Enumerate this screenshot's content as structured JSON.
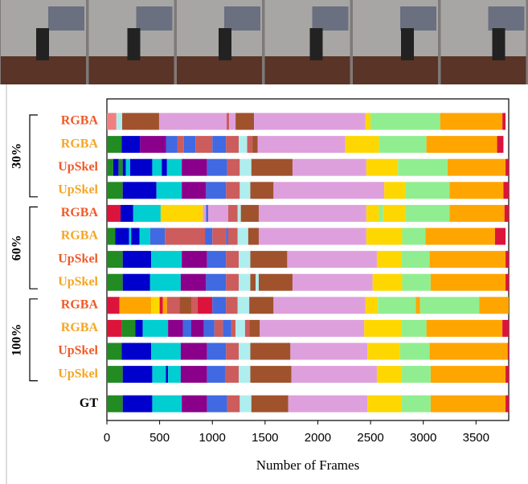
{
  "chart_data": {
    "type": "segments",
    "xlabel": "Number of Frames",
    "xlim": [
      0,
      3810
    ],
    "xticks": [
      0,
      500,
      1000,
      1500,
      2000,
      2500,
      3000,
      3500
    ],
    "groups": [
      {
        "label": "30%",
        "rows": [
          {
            "label": "RGBA",
            "label_color": "#f05a28",
            "colors": [
              "lightcoral",
              "paleturquoise",
              "sienna",
              "plum",
              "indianred",
              "plum",
              "sienna",
              "plum",
              "gold",
              "lightgreen",
              "orange",
              "crimson"
            ],
            "values": [
              90,
              55,
              350,
              640,
              25,
              60,
              175,
              1055,
              50,
              660,
              590,
              30
            ]
          },
          {
            "label": "RGBA",
            "label_color": "#f5a623",
            "colors": [
              "forestgreen",
              "mediumblue",
              "darkmagenta",
              "royalblue",
              "indianred",
              "royalblue",
              "indianred",
              "royalblue",
              "indianred",
              "paleturquoise",
              "indianred",
              "sienna",
              "plum",
              "gold",
              "lightgreen",
              "orange",
              "crimson"
            ],
            "values": [
              140,
              175,
              245,
              110,
              60,
              110,
              160,
              130,
              120,
              80,
              50,
              50,
              830,
              320,
              450,
              670,
              60
            ]
          },
          {
            "label": "UpSkel",
            "label_color": "#f05a28",
            "colors": [
              "forestgreen",
              "mediumblue",
              "forestgreen",
              "mediumblue",
              "darkturquoise",
              "mediumblue",
              "darkturquoise",
              "mediumblue",
              "darkturquoise",
              "darkmagenta",
              "royalblue",
              "indianred",
              "paleturquoise",
              "sienna",
              "plum",
              "gold",
              "lightgreen",
              "orange",
              "crimson"
            ],
            "values": [
              60,
              50,
              40,
              30,
              40,
              210,
              90,
              50,
              140,
              240,
              190,
              120,
              110,
              390,
              700,
              300,
              470,
              550,
              30
            ]
          },
          {
            "label": "UpSkel",
            "label_color": "#f5a623",
            "colors": [
              "forestgreen",
              "mediumblue",
              "darkturquoise",
              "darkmagenta",
              "royalblue",
              "indianred",
              "paleturquoise",
              "sienna",
              "plum",
              "gold",
              "lightgreen",
              "orange",
              "crimson"
            ],
            "values": [
              150,
              320,
              240,
              230,
              190,
              130,
              100,
              220,
              1050,
              200,
              420,
              510,
              50
            ]
          }
        ]
      },
      {
        "label": "60%",
        "rows": [
          {
            "label": "RGBA",
            "label_color": "#f05a28",
            "colors": [
              "crimson",
              "mediumblue",
              "darkturquoise",
              "gold",
              "plum",
              "royalblue",
              "plum",
              "indianred",
              "paleturquoise",
              "sienna",
              "plum",
              "gold",
              "lightgreen",
              "gold",
              "lightgreen",
              "orange",
              "crimson"
            ],
            "values": [
              130,
              120,
              260,
              400,
              30,
              20,
              190,
              90,
              30,
              170,
              1020,
              120,
              40,
              210,
              420,
              520,
              40
            ]
          },
          {
            "label": "RGBA",
            "label_color": "#f5a623",
            "colors": [
              "forestgreen",
              "mediumblue",
              "darkturquoise",
              "mediumblue",
              "darkturquoise",
              "royalblue",
              "indianred",
              "royalblue",
              "indianred",
              "royalblue",
              "indianred",
              "paleturquoise",
              "sienna",
              "plum",
              "gold",
              "lightgreen",
              "orange",
              "crimson"
            ],
            "values": [
              80,
              130,
              20,
              80,
              100,
              140,
              380,
              70,
              130,
              20,
              90,
              100,
              100,
              1020,
              340,
              220,
              660,
              100
            ]
          },
          {
            "label": "UpSkel",
            "label_color": "#f05a28",
            "colors": [
              "forestgreen",
              "mediumblue",
              "darkturquoise",
              "darkmagenta",
              "royalblue",
              "indianred",
              "paleturquoise",
              "sienna",
              "plum",
              "gold",
              "lightgreen",
              "orange",
              "crimson"
            ],
            "values": [
              150,
              270,
              290,
              240,
              180,
              120,
              110,
              350,
              850,
              230,
              270,
              720,
              30
            ]
          },
          {
            "label": "UpSkel",
            "label_color": "#f5a623",
            "colors": [
              "forestgreen",
              "mediumblue",
              "darkturquoise",
              "darkmagenta",
              "royalblue",
              "indianred",
              "paleturquoise",
              "sienna",
              "paleturquoise",
              "sienna",
              "plum",
              "gold",
              "lightgreen",
              "orange",
              "crimson"
            ],
            "values": [
              150,
              260,
              290,
              240,
              190,
              120,
              110,
              50,
              30,
              320,
              760,
              280,
              270,
              710,
              30
            ]
          }
        ]
      },
      {
        "label": "100%",
        "rows": [
          {
            "label": "RGBA",
            "label_color": "#f05a28",
            "colors": [
              "crimson",
              "orange",
              "gold",
              "crimson",
              "orange",
              "indianred",
              "sienna",
              "indianred",
              "crimson",
              "royalblue",
              "indianred",
              "paleturquoise",
              "sienna",
              "plum",
              "gold",
              "lightgreen",
              "orange",
              "lightgreen",
              "orange"
            ],
            "values": [
              120,
              300,
              80,
              30,
              40,
              120,
              110,
              60,
              140,
              130,
              110,
              110,
              230,
              870,
              120,
              360,
              40,
              560,
              280
            ]
          },
          {
            "label": "RGBA",
            "label_color": "#f5a623",
            "colors": [
              "crimson",
              "forestgreen",
              "mediumblue",
              "darkturquoise",
              "darkmagenta",
              "royalblue",
              "darkmagenta",
              "royalblue",
              "indianred",
              "royalblue",
              "indianred",
              "paleturquoise",
              "indianred",
              "sienna",
              "plum",
              "gold",
              "lightgreen",
              "orange",
              "crimson"
            ],
            "values": [
              140,
              130,
              70,
              240,
              140,
              80,
              120,
              100,
              80,
              80,
              40,
              90,
              40,
              100,
              990,
              350,
              240,
              720,
              60
            ]
          },
          {
            "label": "UpSkel",
            "label_color": "#f05a28",
            "colors": [
              "forestgreen",
              "mediumblue",
              "darkturquoise",
              "darkmagenta",
              "royalblue",
              "indianred",
              "paleturquoise",
              "sienna",
              "plum",
              "gold",
              "lightgreen",
              "orange",
              "crimson"
            ],
            "values": [
              140,
              280,
              280,
              250,
              180,
              120,
              110,
              380,
              730,
              310,
              280,
              740,
              10
            ]
          },
          {
            "label": "UpSkel",
            "label_color": "#f5a623",
            "colors": [
              "forestgreen",
              "mediumblue",
              "darkturquoise",
              "mediumblue",
              "darkturquoise",
              "darkmagenta",
              "royalblue",
              "indianred",
              "paleturquoise",
              "sienna",
              "plum",
              "gold",
              "lightgreen",
              "orange",
              "crimson"
            ],
            "values": [
              150,
              280,
              130,
              20,
              120,
              250,
              170,
              130,
              110,
              390,
              810,
              230,
              280,
              710,
              30
            ]
          }
        ]
      }
    ],
    "gt": {
      "label": "GT",
      "label_color": "#000000",
      "colors": [
        "forestgreen",
        "mediumblue",
        "darkturquoise",
        "darkmagenta",
        "royalblue",
        "indianred",
        "paleturquoise",
        "sienna",
        "plum",
        "gold",
        "lightgreen",
        "orange",
        "crimson"
      ],
      "values": [
        150,
        280,
        280,
        240,
        190,
        120,
        110,
        350,
        750,
        320,
        280,
        710,
        30
      ]
    }
  }
}
